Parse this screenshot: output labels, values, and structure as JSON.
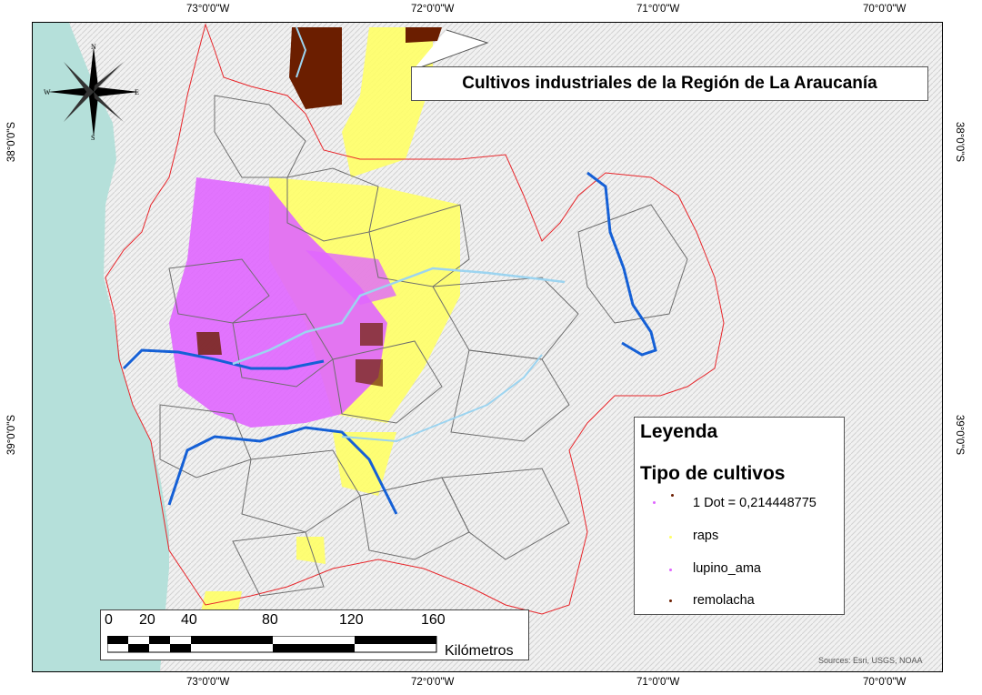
{
  "map": {
    "title": "Cultivos industriales de la Región de La Araucanía",
    "credits": "Sources: Esri, USGS, NOAA",
    "graticule": {
      "top": [
        "73°0'0\"W",
        "72°0'0\"W",
        "71°0'0\"W",
        "70°0'0\"W"
      ],
      "bottom": [
        "73°0'0\"W",
        "72°0'0\"W",
        "71°0'0\"W",
        "70°0'0\"W"
      ],
      "left": [
        "38°0'0\"S",
        "39°0'0\"S"
      ],
      "right": [
        "38°0'0\"S",
        "39°0'0\"S"
      ]
    },
    "compass": {
      "n": "N",
      "s": "S",
      "e": "E",
      "w": "W"
    }
  },
  "legend": {
    "title": "Leyenda",
    "subtitle": "Tipo de cultivos",
    "dot_label": "1 Dot = 0,214448775",
    "items": [
      {
        "label": "raps",
        "color": "#ffff66"
      },
      {
        "label": "lupino_ama",
        "color": "#e066ff"
      },
      {
        "label": "remolacha",
        "color": "#6b1e00"
      }
    ]
  },
  "scale": {
    "ticks": [
      "0",
      "20",
      "40",
      "80",
      "120",
      "160"
    ],
    "units": "Kilómetros"
  },
  "colors": {
    "sea": "#b5e0da",
    "region_border": "#e8262b",
    "commune_border": "#6e6e6e",
    "river_major": "#1560d6",
    "river_minor": "#9cd4f0",
    "raps": "#ffff66",
    "lupino": "#e066ff",
    "remolacha": "#6b1e00"
  }
}
